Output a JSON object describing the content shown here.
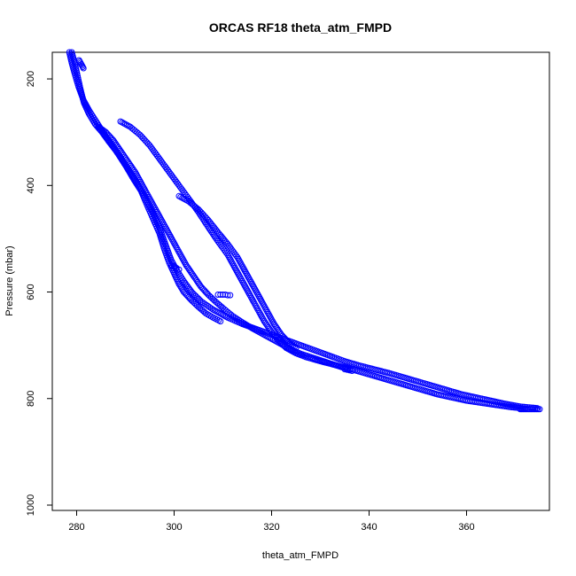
{
  "chart_data": {
    "type": "scatter",
    "title": "ORCAS RF18 theta_atm_FMPD",
    "xlabel": "theta_atm_FMPD",
    "ylabel": "Pressure (mbar)",
    "xlim": [
      275,
      377
    ],
    "ylim": [
      1010,
      150
    ],
    "y_reversed": true,
    "x_ticks": [
      280,
      300,
      320,
      340,
      360
    ],
    "y_ticks": [
      200,
      400,
      600,
      800,
      1000
    ],
    "grid": false,
    "legend": "none",
    "marker": "open-circle",
    "colors": {
      "points": "#0000ff",
      "axis": "#000000"
    },
    "branches": [
      {
        "points": [
          [
            279.0,
            150
          ],
          [
            279.6,
            170
          ],
          [
            280.2,
            195
          ],
          [
            280.8,
            220
          ],
          [
            281.5,
            245
          ],
          [
            282.5,
            265
          ],
          [
            283.8,
            285
          ],
          [
            285.2,
            300
          ],
          [
            286.8,
            320
          ],
          [
            288.5,
            340
          ],
          [
            290.2,
            365
          ],
          [
            291.8,
            390
          ],
          [
            293.2,
            410
          ],
          [
            294.6,
            440
          ],
          [
            295.8,
            465
          ],
          [
            297.0,
            490
          ],
          [
            298.0,
            520
          ],
          [
            299.0,
            545
          ],
          [
            300.0,
            565
          ],
          [
            301.0,
            585
          ],
          [
            302.0,
            600
          ],
          [
            303.5,
            615
          ],
          [
            305.0,
            628
          ],
          [
            306.5,
            640
          ],
          [
            308.0,
            648
          ],
          [
            309.5,
            655
          ]
        ]
      },
      {
        "points": [
          [
            278.5,
            150
          ],
          [
            279.0,
            170
          ],
          [
            279.6,
            190
          ],
          [
            280.4,
            215
          ],
          [
            281.4,
            240
          ],
          [
            282.6,
            260
          ],
          [
            284.0,
            280
          ],
          [
            285.4,
            300
          ],
          [
            287.0,
            320
          ],
          [
            288.8,
            345
          ],
          [
            290.6,
            370
          ],
          [
            292.4,
            395
          ],
          [
            294.0,
            420
          ],
          [
            295.6,
            450
          ],
          [
            297.0,
            480
          ],
          [
            298.2,
            510
          ],
          [
            299.4,
            540
          ],
          [
            300.6,
            560
          ],
          [
            302.0,
            580
          ],
          [
            303.6,
            600
          ],
          [
            305.6,
            618
          ],
          [
            308.0,
            633
          ],
          [
            311.0,
            648
          ],
          [
            314.0,
            660
          ],
          [
            317.0,
            670
          ],
          [
            320.0,
            680
          ],
          [
            323.0,
            690
          ],
          [
            326.0,
            700
          ],
          [
            329.0,
            710
          ],
          [
            332.0,
            720
          ],
          [
            335.0,
            730
          ],
          [
            338.0,
            738
          ],
          [
            341.0,
            745
          ],
          [
            344.0,
            752
          ],
          [
            347.0,
            760
          ],
          [
            350.0,
            768
          ],
          [
            353.0,
            776
          ],
          [
            356.0,
            784
          ],
          [
            359.0,
            792
          ],
          [
            362.0,
            798
          ],
          [
            365.0,
            804
          ],
          [
            368.0,
            810
          ],
          [
            371.0,
            815
          ],
          [
            374.5,
            818
          ]
        ]
      },
      {
        "points": [
          [
            284.5,
            290
          ],
          [
            286.0,
            300
          ],
          [
            287.5,
            315
          ],
          [
            289.0,
            335
          ],
          [
            290.5,
            355
          ],
          [
            292.0,
            375
          ],
          [
            293.5,
            400
          ],
          [
            295.0,
            425
          ],
          [
            296.5,
            450
          ],
          [
            298.0,
            475
          ],
          [
            299.5,
            500
          ],
          [
            301.0,
            525
          ],
          [
            302.5,
            550
          ],
          [
            304.0,
            570
          ],
          [
            305.5,
            590
          ],
          [
            307.0,
            605
          ],
          [
            308.5,
            618
          ],
          [
            310.0,
            630
          ],
          [
            312.0,
            645
          ],
          [
            314.0,
            657
          ],
          [
            316.0,
            668
          ],
          [
            318.0,
            678
          ],
          [
            320.0,
            688
          ],
          [
            322.0,
            698
          ],
          [
            324.0,
            708
          ],
          [
            326.0,
            716
          ],
          [
            328.0,
            722
          ],
          [
            330.0,
            728
          ],
          [
            332.0,
            734
          ],
          [
            334.0,
            740
          ],
          [
            336.0,
            746
          ]
        ]
      },
      {
        "points": [
          [
            289.0,
            280
          ],
          [
            291.0,
            290
          ],
          [
            293.0,
            305
          ],
          [
            295.0,
            325
          ],
          [
            297.0,
            350
          ],
          [
            299.0,
            375
          ],
          [
            301.0,
            400
          ],
          [
            303.0,
            425
          ],
          [
            305.0,
            450
          ],
          [
            307.0,
            478
          ],
          [
            309.0,
            505
          ],
          [
            311.0,
            530
          ],
          [
            312.5,
            555
          ],
          [
            314.0,
            580
          ],
          [
            315.5,
            605
          ],
          [
            317.0,
            630
          ],
          [
            318.5,
            655
          ],
          [
            320.0,
            675
          ],
          [
            321.5,
            692
          ],
          [
            323.0,
            705
          ],
          [
            325.0,
            715
          ],
          [
            327.0,
            722
          ],
          [
            330.0,
            730
          ],
          [
            333.0,
            737
          ],
          [
            336.0,
            744
          ],
          [
            339.0,
            752
          ],
          [
            342.0,
            760
          ],
          [
            345.0,
            768
          ],
          [
            348.0,
            776
          ],
          [
            351.0,
            784
          ],
          [
            354.0,
            792
          ],
          [
            357.0,
            798
          ],
          [
            360.0,
            804
          ],
          [
            363.0,
            808
          ],
          [
            366.0,
            812
          ],
          [
            369.0,
            816
          ],
          [
            372.0,
            819
          ]
        ]
      },
      {
        "points": [
          [
            301.0,
            420
          ],
          [
            303.0,
            430
          ],
          [
            305.0,
            445
          ],
          [
            307.0,
            465
          ],
          [
            309.0,
            488
          ],
          [
            311.0,
            510
          ],
          [
            313.0,
            535
          ],
          [
            314.5,
            560
          ],
          [
            316.0,
            585
          ],
          [
            317.5,
            610
          ],
          [
            319.0,
            635
          ],
          [
            320.5,
            660
          ],
          [
            322.0,
            680
          ],
          [
            323.5,
            695
          ],
          [
            325.0,
            705
          ]
        ]
      },
      {
        "points": [
          [
            299.5,
            550
          ],
          [
            300.0,
            552
          ],
          [
            300.5,
            555
          ],
          [
            301.0,
            558
          ]
        ]
      },
      {
        "points": [
          [
            309.0,
            605
          ],
          [
            309.5,
            605
          ],
          [
            310.0,
            605
          ],
          [
            310.5,
            605
          ],
          [
            311.0,
            606
          ],
          [
            311.5,
            606
          ]
        ]
      },
      {
        "points": [
          [
            335.0,
            745
          ],
          [
            335.5,
            746
          ],
          [
            336.0,
            747
          ],
          [
            336.5,
            748
          ]
        ]
      },
      {
        "points": [
          [
            280.5,
            165
          ],
          [
            280.8,
            170
          ],
          [
            281.1,
            175
          ],
          [
            281.4,
            180
          ]
        ]
      },
      {
        "points": [
          [
            371.0,
            820
          ],
          [
            372.0,
            820
          ],
          [
            373.0,
            820
          ],
          [
            374.0,
            820
          ],
          [
            375.0,
            820
          ]
        ]
      }
    ]
  }
}
